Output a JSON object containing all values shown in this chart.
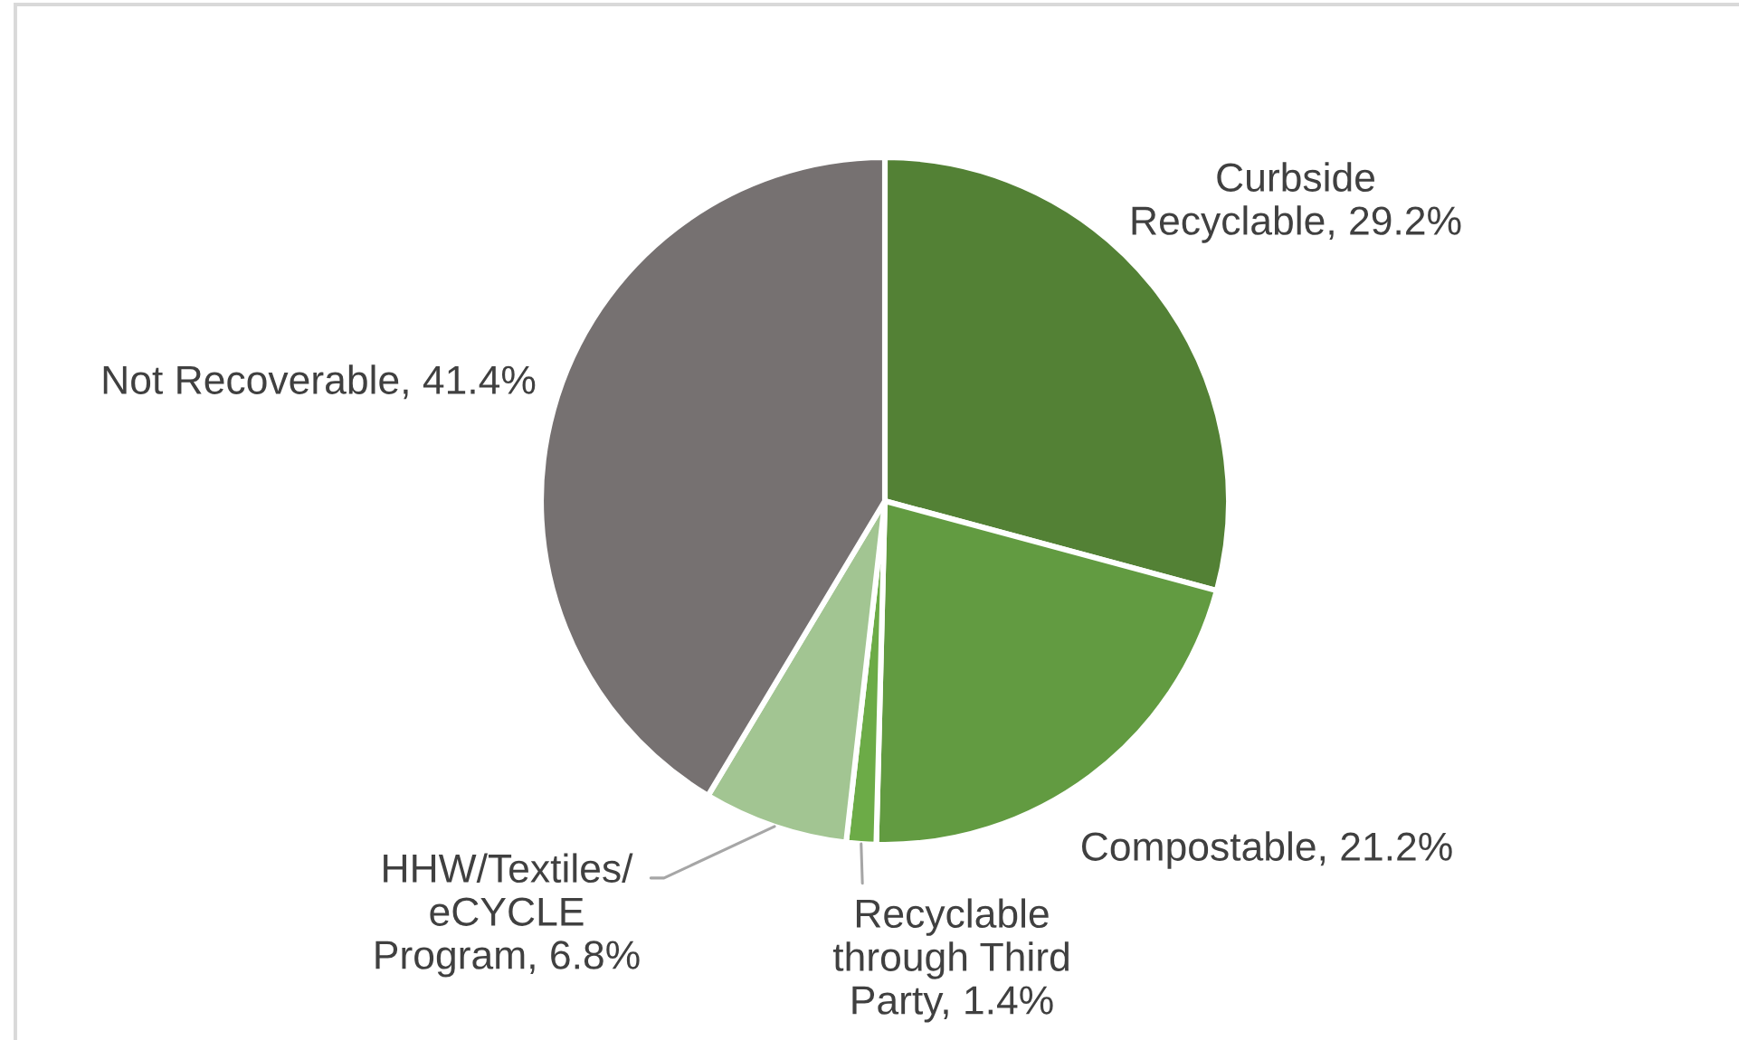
{
  "chart_data": {
    "type": "pie",
    "categories": [
      "Curbside\nRecyclable",
      "Compostable",
      "Recyclable\nthrough Third\nParty",
      "HHW/Textiles/\neCYCLE\nProgram",
      "Not Recoverable"
    ],
    "values": [
      29.2,
      21.2,
      1.4,
      6.8,
      41.4
    ],
    "colors": [
      "#538135",
      "#629b41",
      "#6cab47",
      "#a2c592",
      "#767171"
    ],
    "value_labels": [
      "29.2%",
      "21.2%",
      "1.4%",
      "6.8%",
      "41.4%"
    ]
  }
}
